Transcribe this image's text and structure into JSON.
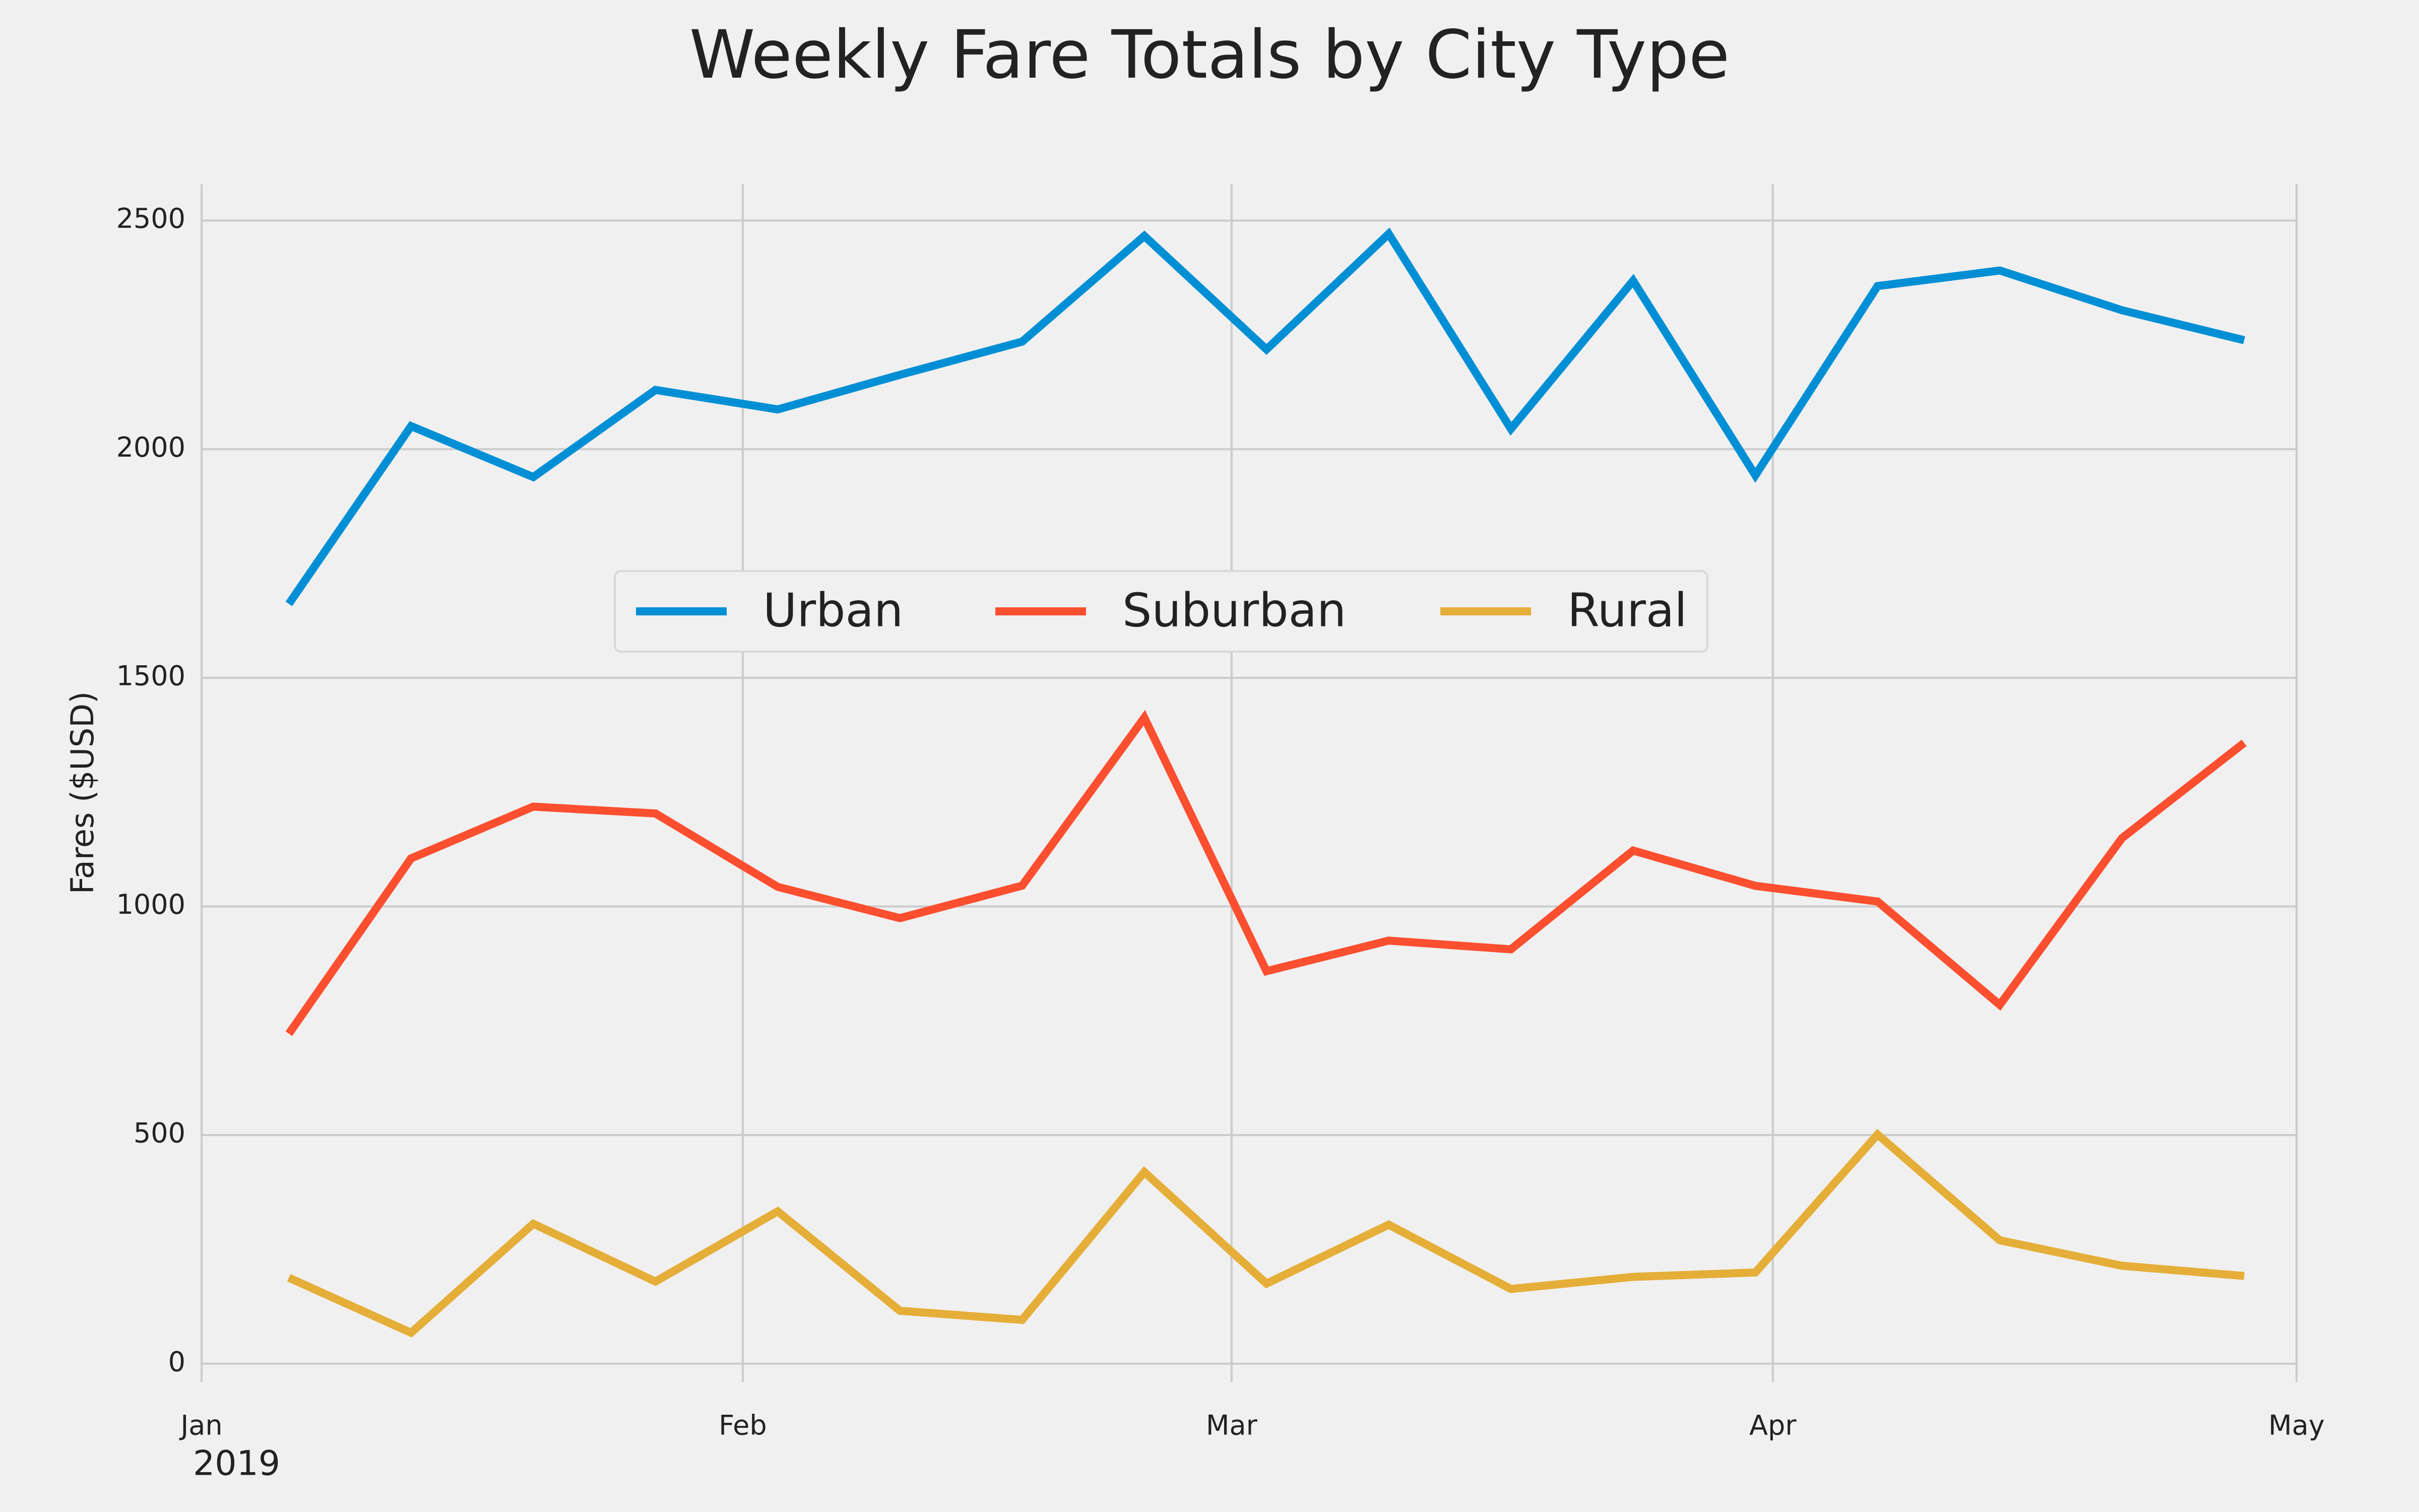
{
  "chart_data": {
    "type": "line",
    "title": "Weekly Fare Totals by City Type",
    "xlabel": "",
    "ylabel": "Fares ($USD)",
    "x_axis": {
      "type": "date",
      "range": [
        "2019-01-01",
        "2019-05-01"
      ],
      "ticks": [
        {
          "date": "2019-01-01",
          "label": "Jan"
        },
        {
          "date": "2019-02-01",
          "label": "Feb"
        },
        {
          "date": "2019-03-01",
          "label": "Mar"
        },
        {
          "date": "2019-04-01",
          "label": "Apr"
        },
        {
          "date": "2019-05-01",
          "label": "May"
        }
      ],
      "offset_label": "2019"
    },
    "y_axis": {
      "range": [
        -40,
        2580
      ],
      "ticks": [
        0,
        500,
        1000,
        1500,
        2000,
        2500
      ]
    },
    "grid": true,
    "legend": {
      "placement": "center",
      "columns": 3
    },
    "x": [
      "2019-01-06",
      "2019-01-13",
      "2019-01-20",
      "2019-01-27",
      "2019-02-03",
      "2019-02-10",
      "2019-02-17",
      "2019-02-24",
      "2019-03-03",
      "2019-03-10",
      "2019-03-17",
      "2019-03-24",
      "2019-03-31",
      "2019-04-07",
      "2019-04-14",
      "2019-04-21",
      "2019-04-28"
    ],
    "series": [
      {
        "name": "Urban",
        "color": "#008fd5",
        "values": [
          1661.68,
          2050.43,
          1939.02,
          2129.51,
          2086.94,
          2162.64,
          2235.07,
          2466.29,
          2218.2,
          2470.93,
          2044.42,
          2368.37,
          1942.77,
          2356.7,
          2390.72,
          2303.8,
          2238.29
        ]
      },
      {
        "name": "Suburban",
        "color": "#fc4f30",
        "values": [
          721.6,
          1105.13,
          1218.2,
          1203.28,
          1042.79,
          974.34,
          1045.5,
          1412.74,
          858.46,
          925.27,
          906.2,
          1122.2,
          1045.06,
          1010.73,
          784.82,
          1149.27,
          1357.75
        ]
      },
      {
        "name": "Rural",
        "color": "#e5ae38",
        "values": [
          187.92,
          67.65,
          306.0,
          179.69,
          333.08,
          115.8,
          95.82,
          419.06,
          175.14,
          303.94,
          163.39,
          189.76,
          199.42,
          501.24,
          269.79,
          214.14,
          191.85
        ]
      }
    ]
  }
}
